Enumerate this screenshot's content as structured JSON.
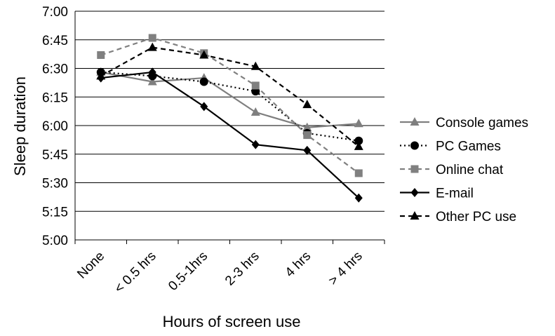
{
  "chart_data": {
    "type": "line",
    "title": "",
    "xlabel": "Hours of screen use",
    "ylabel": "Sleep duration",
    "categories": [
      "None",
      "< 0.5 hrs",
      "0.5-1hrs",
      "2-3 hrs",
      "4 hrs",
      "> 4 hrs"
    ],
    "ylim": [
      300,
      420
    ],
    "yticks": [
      {
        "value": 300,
        "label": "5:00"
      },
      {
        "value": 315,
        "label": "5:15"
      },
      {
        "value": 330,
        "label": "5:30"
      },
      {
        "value": 345,
        "label": "5:45"
      },
      {
        "value": 360,
        "label": "6:00"
      },
      {
        "value": 375,
        "label": "6:15"
      },
      {
        "value": 390,
        "label": "6:30"
      },
      {
        "value": 405,
        "label": "6:45"
      },
      {
        "value": 420,
        "label": "7:00"
      }
    ],
    "grid": "horizontal",
    "legend": "right",
    "series": [
      {
        "name": "Console games",
        "marker": "triangle",
        "dash": "solid",
        "color": "#7f7f7f",
        "values": [
          388,
          383,
          385,
          367,
          359,
          361
        ]
      },
      {
        "name": "PC Games",
        "marker": "circle",
        "dash": "dotted",
        "color": "#000000",
        "values": [
          388,
          386,
          383,
          378,
          356,
          352
        ]
      },
      {
        "name": "Online chat",
        "marker": "square",
        "dash": "dashed",
        "color": "#808080",
        "values": [
          397,
          406,
          398,
          381,
          355,
          335
        ]
      },
      {
        "name": "E-mail",
        "marker": "diamond",
        "dash": "solid",
        "color": "#000000",
        "values": [
          385,
          388,
          370,
          350,
          347,
          322
        ]
      },
      {
        "name": "Other PC use",
        "marker": "triangle",
        "dash": "dashed",
        "color": "#000000",
        "values": [
          386,
          401,
          397,
          391,
          371,
          349
        ]
      }
    ]
  }
}
